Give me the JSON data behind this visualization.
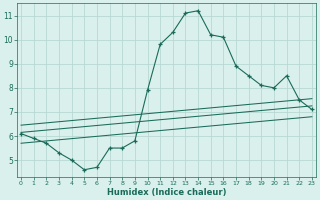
{
  "xlabel": "Humidex (Indice chaleur)",
  "background_color": "#daf0ec",
  "grid_color": "#b8d8d4",
  "line_color": "#1a6b5a",
  "x_values": [
    0,
    1,
    2,
    3,
    4,
    5,
    6,
    7,
    8,
    9,
    10,
    11,
    12,
    13,
    14,
    15,
    16,
    17,
    18,
    19,
    20,
    21,
    22,
    23
  ],
  "y_main": [
    6.1,
    5.9,
    5.7,
    5.3,
    5.0,
    4.6,
    4.7,
    5.5,
    5.5,
    5.8,
    7.9,
    9.8,
    10.3,
    11.1,
    11.2,
    10.2,
    10.1,
    8.9,
    8.5,
    8.1,
    8.0,
    8.5,
    7.5,
    7.1
  ],
  "trend_lines": [
    {
      "x0": 0,
      "y0": 6.45,
      "x1": 23,
      "y1": 7.55
    },
    {
      "x0": 0,
      "y0": 6.15,
      "x1": 23,
      "y1": 7.25
    },
    {
      "x0": 0,
      "y0": 5.7,
      "x1": 23,
      "y1": 6.8
    }
  ],
  "ylim": [
    4.3,
    11.5
  ],
  "xlim": [
    -0.3,
    23.3
  ],
  "yticks": [
    5,
    6,
    7,
    8,
    9,
    10,
    11
  ],
  "xticks": [
    0,
    1,
    2,
    3,
    4,
    5,
    6,
    7,
    8,
    9,
    10,
    11,
    12,
    13,
    14,
    15,
    16,
    17,
    18,
    19,
    20,
    21,
    22,
    23
  ]
}
